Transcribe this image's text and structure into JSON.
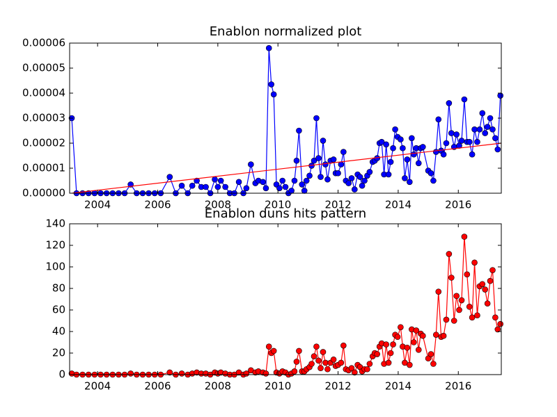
{
  "chart_data": [
    {
      "type": "line",
      "title": "Enablon normalized plot",
      "x": [
        2003.14,
        2003.3,
        2003.5,
        2003.7,
        2003.9,
        2004.1,
        2004.3,
        2004.5,
        2004.7,
        2004.9,
        2005.1,
        2005.3,
        2005.5,
        2005.7,
        2005.9,
        2006.1,
        2006.4,
        2006.6,
        2006.8,
        2007.0,
        2007.15,
        2007.3,
        2007.45,
        2007.6,
        2007.75,
        2007.9,
        2008.0,
        2008.1,
        2008.25,
        2008.4,
        2008.55,
        2008.7,
        2008.85,
        2008.95,
        2009.1,
        2009.25,
        2009.35,
        2009.5,
        2009.6,
        2009.7,
        2009.78,
        2009.86,
        2009.95,
        2010.05,
        2010.15,
        2010.25,
        2010.35,
        2010.45,
        2010.55,
        2010.62,
        2010.7,
        2010.8,
        2010.88,
        2010.95,
        2011.05,
        2011.12,
        2011.2,
        2011.28,
        2011.35,
        2011.42,
        2011.5,
        2011.58,
        2011.65,
        2011.75,
        2011.85,
        2011.92,
        2012.0,
        2012.1,
        2012.18,
        2012.26,
        2012.35,
        2012.45,
        2012.55,
        2012.65,
        2012.73,
        2012.8,
        2012.88,
        2012.97,
        2013.05,
        2013.15,
        2013.22,
        2013.3,
        2013.38,
        2013.45,
        2013.53,
        2013.6,
        2013.68,
        2013.75,
        2013.83,
        2013.9,
        2013.98,
        2014.08,
        2014.15,
        2014.22,
        2014.3,
        2014.38,
        2014.45,
        2014.52,
        2014.6,
        2014.68,
        2014.75,
        2014.82,
        2015.0,
        2015.09,
        2015.17,
        2015.26,
        2015.34,
        2015.43,
        2015.51,
        2015.6,
        2015.69,
        2015.77,
        2015.86,
        2015.94,
        2016.03,
        2016.11,
        2016.2,
        2016.29,
        2016.37,
        2016.46,
        2016.54,
        2016.63,
        2016.71,
        2016.8,
        2016.89,
        2016.97,
        2017.06,
        2017.14,
        2017.23,
        2017.31,
        2017.4
      ],
      "series": [
        {
          "color": "#0000ff",
          "marker": true,
          "values": [
            3e-05,
            0,
            0,
            0,
            0,
            0,
            0,
            0,
            0,
            0,
            3.5e-06,
            0,
            0,
            0,
            0,
            0,
            6.5e-06,
            0,
            3e-06,
            0,
            3e-06,
            5e-06,
            2.5e-06,
            2.5e-06,
            0,
            5.5e-06,
            2.5e-06,
            5e-06,
            2.5e-06,
            0,
            0,
            4.5e-06,
            0,
            2e-06,
            1.15e-05,
            4e-06,
            5e-06,
            4.5e-06,
            2e-06,
            5.8e-05,
            4.35e-05,
            3.95e-05,
            3.5e-06,
            2e-06,
            5e-06,
            2.5e-06,
            0,
            1e-06,
            5e-06,
            1.3e-05,
            2.5e-05,
            3.5e-06,
            1e-06,
            5e-06,
            7e-06,
            1.1e-05,
            1.3e-05,
            3e-05,
            1.4e-05,
            6.5e-06,
            2.1e-05,
            1.15e-05,
            5.5e-06,
            1.3e-05,
            1.35e-05,
            8e-06,
            8e-06,
            1.15e-05,
            1.65e-05,
            5e-06,
            4e-06,
            6e-06,
            1.5e-06,
            7.5e-06,
            6.5e-06,
            3e-06,
            5e-06,
            7e-06,
            8.5e-06,
            1.25e-05,
            1.3e-05,
            1.4e-05,
            2e-05,
            2.05e-05,
            7.5e-06,
            1.95e-05,
            7.5e-06,
            1.25e-05,
            1.8e-05,
            2.55e-05,
            2.25e-05,
            2.15e-05,
            1.8e-05,
            6e-06,
            1.35e-05,
            4.5e-06,
            2.2e-05,
            1.55e-05,
            1.8e-05,
            1.2e-05,
            1.8e-05,
            1.85e-05,
            9e-06,
            8e-06,
            5e-06,
            1.65e-05,
            2.95e-05,
            1.7e-05,
            1.55e-05,
            2e-05,
            3.6e-05,
            2.4e-05,
            1.85e-05,
            2.35e-05,
            1.9e-05,
            2.1e-05,
            3.75e-05,
            2.05e-05,
            2.05e-05,
            1.55e-05,
            2.55e-05,
            2.05e-05,
            2.55e-05,
            3.2e-05,
            2.4e-05,
            2.65e-05,
            3e-05,
            2.55e-05,
            2.2e-05,
            1.75e-05,
            3.9e-05
          ]
        },
        {
          "color": "#ff0000",
          "marker": false,
          "x": [
            2003.14,
            2017.43
          ],
          "values": [
            0,
            2e-05
          ]
        }
      ],
      "xlim": [
        2003.07,
        2017.43
      ],
      "xticks": [
        2004,
        2006,
        2008,
        2010,
        2012,
        2014,
        2016
      ],
      "ylim": [
        0,
        6e-05
      ],
      "yticks": [
        {
          "value": 0,
          "label": "0.00000"
        },
        {
          "value": 1e-05,
          "label": "0.00001"
        },
        {
          "value": 2e-05,
          "label": "0.00002"
        },
        {
          "value": 3e-05,
          "label": "0.00003"
        },
        {
          "value": 4e-05,
          "label": "0.00004"
        },
        {
          "value": 5e-05,
          "label": "0.00005"
        },
        {
          "value": 6e-05,
          "label": "0.00006"
        }
      ]
    },
    {
      "type": "line",
      "title": "Enablon duns hits pattern",
      "x": [
        2003.14,
        2003.3,
        2003.5,
        2003.7,
        2003.9,
        2004.1,
        2004.3,
        2004.5,
        2004.7,
        2004.9,
        2005.1,
        2005.3,
        2005.5,
        2005.7,
        2005.9,
        2006.1,
        2006.4,
        2006.6,
        2006.8,
        2007.0,
        2007.15,
        2007.3,
        2007.45,
        2007.6,
        2007.75,
        2007.9,
        2008.0,
        2008.1,
        2008.25,
        2008.4,
        2008.55,
        2008.7,
        2008.85,
        2008.95,
        2009.1,
        2009.25,
        2009.35,
        2009.5,
        2009.6,
        2009.7,
        2009.78,
        2009.86,
        2009.95,
        2010.05,
        2010.15,
        2010.25,
        2010.35,
        2010.45,
        2010.55,
        2010.62,
        2010.7,
        2010.8,
        2010.88,
        2010.95,
        2011.05,
        2011.12,
        2011.2,
        2011.28,
        2011.35,
        2011.42,
        2011.5,
        2011.58,
        2011.65,
        2011.75,
        2011.85,
        2011.92,
        2012.0,
        2012.1,
        2012.18,
        2012.26,
        2012.35,
        2012.45,
        2012.55,
        2012.65,
        2012.73,
        2012.8,
        2012.88,
        2012.97,
        2013.05,
        2013.15,
        2013.22,
        2013.3,
        2013.38,
        2013.45,
        2013.53,
        2013.6,
        2013.68,
        2013.75,
        2013.83,
        2013.9,
        2013.98,
        2014.08,
        2014.15,
        2014.22,
        2014.3,
        2014.38,
        2014.45,
        2014.52,
        2014.6,
        2014.68,
        2014.75,
        2014.82,
        2015.0,
        2015.09,
        2015.17,
        2015.26,
        2015.34,
        2015.43,
        2015.51,
        2015.6,
        2015.69,
        2015.77,
        2015.86,
        2015.94,
        2016.03,
        2016.11,
        2016.2,
        2016.29,
        2016.37,
        2016.46,
        2016.54,
        2016.63,
        2016.71,
        2016.8,
        2016.89,
        2016.97,
        2017.06,
        2017.14,
        2017.23,
        2017.31,
        2017.4
      ],
      "series": [
        {
          "color": "#ff0000",
          "marker": true,
          "values": [
            1,
            0,
            0,
            0,
            0,
            0,
            0,
            0,
            0,
            0,
            1,
            0,
            0,
            0,
            0,
            0,
            2,
            0,
            1,
            0,
            1,
            2,
            1,
            1,
            0,
            2,
            1,
            2,
            1,
            0,
            0,
            2,
            0,
            1,
            4,
            2,
            3,
            2,
            1,
            26,
            20,
            22,
            2,
            1,
            3,
            2,
            0,
            1,
            3,
            12,
            22,
            3,
            3,
            5,
            7,
            10,
            17,
            26,
            13,
            6,
            21,
            11,
            5,
            11,
            14,
            8,
            9,
            11,
            27,
            5,
            4,
            6,
            2,
            9,
            7,
            3,
            5,
            5,
            10,
            17,
            20,
            19,
            26,
            29,
            10,
            28,
            11,
            20,
            28,
            37,
            35,
            44,
            26,
            11,
            25,
            9,
            42,
            30,
            41,
            23,
            38,
            36,
            15,
            19,
            10,
            37,
            77,
            35,
            36,
            51,
            112,
            90,
            50,
            73,
            60,
            69,
            128,
            93,
            63,
            53,
            104,
            55,
            82,
            84,
            79,
            66,
            87,
            97,
            53,
            42,
            47
          ]
        }
      ],
      "xlim": [
        2003.07,
        2017.43
      ],
      "xticks": [
        2004,
        2006,
        2008,
        2010,
        2012,
        2014,
        2016
      ],
      "ylim": [
        0,
        140
      ],
      "yticks": [
        0,
        20,
        40,
        60,
        80,
        100,
        120,
        140
      ]
    }
  ]
}
